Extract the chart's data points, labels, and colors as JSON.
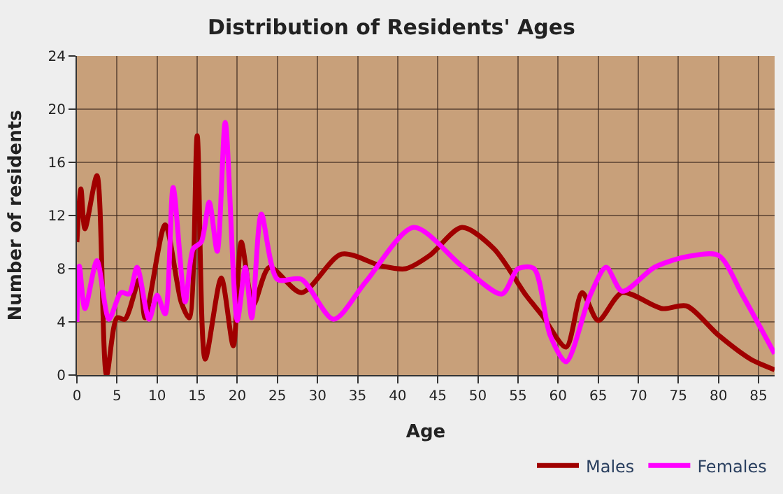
{
  "chart_data": {
    "type": "line",
    "title": "Distribution of Residents' Ages",
    "xlabel": "Age",
    "ylabel": "Number of residents",
    "xlim": [
      0,
      87
    ],
    "xticks": [
      0,
      5,
      10,
      15,
      20,
      25,
      30,
      35,
      40,
      45,
      50,
      55,
      60,
      65,
      70,
      75,
      80,
      85
    ],
    "ylim": [
      0,
      24
    ],
    "yticks": [
      0,
      4,
      8,
      12,
      16,
      20,
      24
    ],
    "grid": true,
    "legend": "bottom right",
    "marker": "none",
    "line_style": "solid",
    "series": [
      {
        "name": "Males",
        "color": "#a00000",
        "x": [
          0,
          0.5,
          1,
          2.5,
          3.7,
          5,
          6,
          7.8,
          8.5,
          11,
          13,
          14,
          15,
          16,
          18,
          19.5,
          20.5,
          22,
          24,
          28,
          33,
          38,
          41,
          44,
          48,
          52,
          56,
          58,
          61,
          63,
          65,
          68,
          73,
          76,
          80,
          84,
          87
        ],
        "values": [
          10,
          14,
          11,
          15,
          0,
          4.3,
          4.2,
          7.2,
          4.3,
          11.3,
          5.5,
          4.3,
          18,
          1.2,
          7.3,
          2.2,
          10,
          5.3,
          8.1,
          6.2,
          9.1,
          8.2,
          8,
          9,
          11.1,
          9.5,
          6,
          4.5,
          2.1,
          6.2,
          4.1,
          6.2,
          5,
          5.2,
          3,
          1.2,
          0.4
        ]
      },
      {
        "name": "Females",
        "color": "#ff00ff",
        "x": [
          0,
          0.3,
          1,
          2.5,
          4,
          5.5,
          6.5,
          7.5,
          9,
          10,
          11,
          12,
          13.5,
          14.5,
          15.5,
          16.5,
          17.5,
          18.5,
          20,
          21,
          21.8,
          23,
          25,
          28,
          32,
          36,
          42,
          48,
          53,
          55,
          57,
          59,
          61,
          64,
          66,
          68,
          72,
          76,
          80,
          83,
          87
        ],
        "values": [
          4,
          8.2,
          5,
          8.6,
          4.2,
          6.2,
          6.1,
          8.1,
          4.2,
          6,
          4.6,
          14.1,
          5.5,
          9.5,
          10,
          13,
          9.3,
          19,
          4.1,
          8.1,
          4.3,
          12.1,
          7.2,
          7.2,
          4.2,
          7,
          11.1,
          8.2,
          6.1,
          8,
          8,
          3,
          1,
          6,
          8.1,
          6.3,
          8.1,
          8.9,
          9,
          6,
          1.6
        ]
      }
    ]
  }
}
